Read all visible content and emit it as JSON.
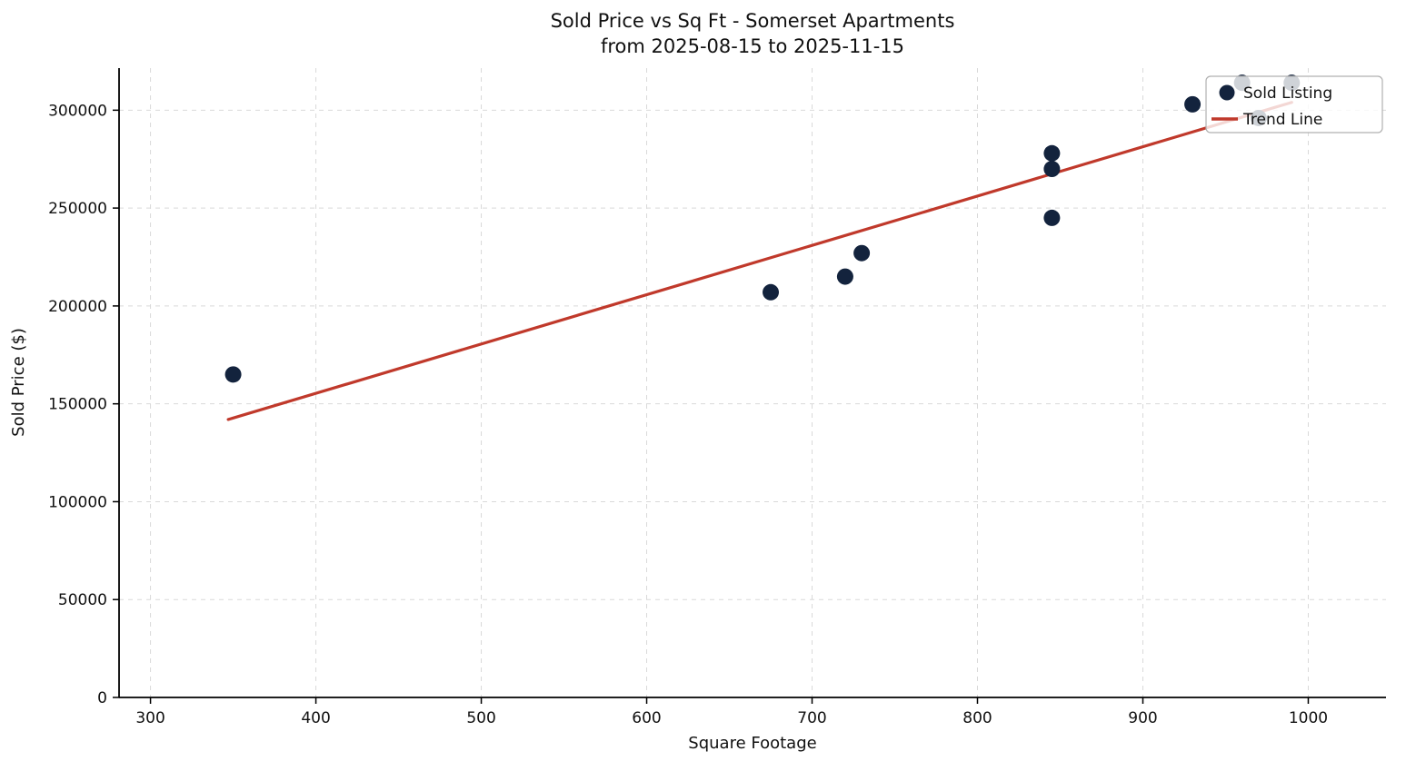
{
  "chart_data": {
    "type": "scatter",
    "title": "Sold Price vs Sq Ft - Somerset Apartments",
    "subtitle": "from 2025-08-15 to 2025-11-15",
    "xlabel": "Square Footage",
    "ylabel": "Sold Price ($)",
    "xlim": [
      281,
      1047
    ],
    "ylim": [
      0,
      321500
    ],
    "xticks": [
      300,
      400,
      500,
      600,
      700,
      800,
      900,
      1000
    ],
    "yticks": [
      0,
      50000,
      100000,
      150000,
      200000,
      250000,
      300000
    ],
    "grid": true,
    "grid_style": "dashed",
    "legend": {
      "position": "upper-right",
      "entries": [
        {
          "label": "Sold Listing",
          "type": "marker",
          "color": "#13233d"
        },
        {
          "label": "Trend Line",
          "type": "line",
          "color": "#c0392b"
        }
      ]
    },
    "series": [
      {
        "name": "Sold Listing",
        "type": "scatter",
        "color": "#13233d",
        "points": [
          [
            350,
            165000
          ],
          [
            675,
            207000
          ],
          [
            720,
            215000
          ],
          [
            730,
            227000
          ],
          [
            845,
            245000
          ],
          [
            845,
            270000
          ],
          [
            845,
            278000
          ],
          [
            930,
            303000
          ],
          [
            960,
            314000
          ],
          [
            970,
            296000
          ],
          [
            990,
            314000
          ]
        ]
      },
      {
        "name": "Trend Line",
        "type": "line",
        "color": "#c0392b",
        "points": [
          [
            347,
            142000
          ],
          [
            990,
            304000
          ]
        ]
      }
    ]
  }
}
